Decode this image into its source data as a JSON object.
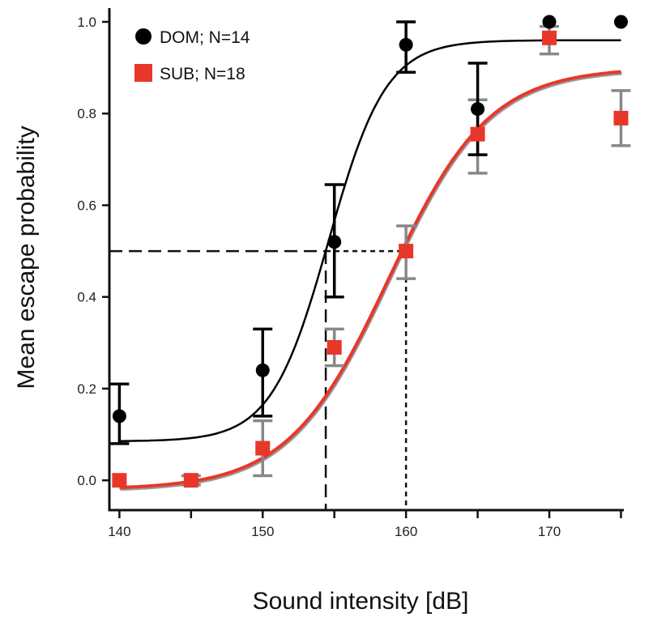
{
  "chart_data": {
    "type": "scatter",
    "xlabel": "Sound intensity [dB]",
    "ylabel": "Mean escape probability",
    "xlim": [
      139.3,
      175.2
    ],
    "ylim": [
      -0.065,
      1.03
    ],
    "xticks": [
      140,
      150,
      160,
      170
    ],
    "xtick_labels": [
      "140",
      "150",
      "160",
      "170"
    ],
    "yticks": [
      0.0,
      0.2,
      0.4,
      0.6,
      0.8,
      1.0
    ],
    "ytick_labels": [
      "0.0",
      "0.2",
      "0.4",
      "0.6",
      "0.8",
      "1.0"
    ],
    "grid": false,
    "legend_position": "top-left",
    "x": [
      140,
      145,
      150,
      155,
      160,
      165,
      170,
      175
    ],
    "series": [
      {
        "name": "DOM; N=14",
        "color": "#000000",
        "error_color": "#000000",
        "marker": "circle",
        "values": [
          0.14,
          0.0,
          0.24,
          0.52,
          0.95,
          0.81,
          1.0,
          1.0
        ],
        "err_upper": [
          0.21,
          null,
          0.33,
          0.645,
          1.0,
          0.91,
          null,
          null
        ],
        "err_lower": [
          0.08,
          null,
          0.14,
          0.4,
          0.89,
          0.71,
          null,
          null
        ],
        "fit": {
          "type": "sigmoid",
          "bottom": 0.085,
          "top": 0.96,
          "x50": 154.6,
          "slope": 2.0
        }
      },
      {
        "name": "SUB; N=18",
        "color": "#e8372a",
        "error_color": "#888888",
        "marker": "square",
        "values": [
          0.0,
          0.0,
          0.07,
          0.29,
          0.5,
          0.755,
          0.965,
          0.79
        ],
        "err_upper": [
          null,
          0.01,
          0.13,
          0.33,
          0.555,
          0.83,
          0.99,
          0.85
        ],
        "err_lower": [
          null,
          -0.01,
          0.01,
          0.25,
          0.44,
          0.67,
          0.93,
          0.73
        ],
        "fit": {
          "type": "sigmoid",
          "bottom": -0.02,
          "top": 0.9,
          "x50": 158.8,
          "slope": 3.5
        }
      }
    ],
    "reference_lines": [
      {
        "x": 154.4,
        "y": 0.5,
        "style": "long-dash"
      },
      {
        "x": 160,
        "y": 0.5,
        "style": "short-dash"
      }
    ]
  }
}
